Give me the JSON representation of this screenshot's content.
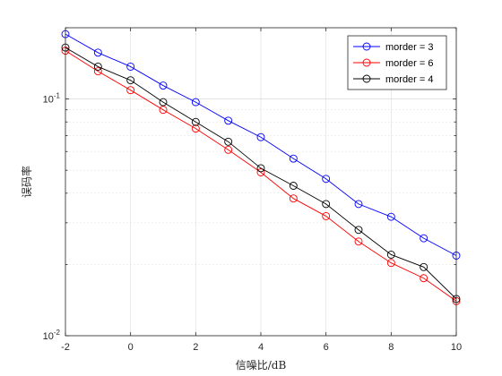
{
  "chart_data": {
    "type": "line",
    "title": "",
    "xlabel": "信噪比/dB",
    "ylabel": "误码率",
    "x": [
      -2,
      -1,
      0,
      1,
      2,
      3,
      4,
      5,
      6,
      7,
      8,
      9,
      10
    ],
    "xlim": [
      -2,
      10
    ],
    "ylim": [
      0.01,
      0.2
    ],
    "yscale": "log",
    "grid": true,
    "legend_position": "top-right",
    "x_ticks": [
      {
        "value": -2,
        "label": "-2"
      },
      {
        "value": 0,
        "label": "0"
      },
      {
        "value": 2,
        "label": "2"
      },
      {
        "value": 4,
        "label": "4"
      },
      {
        "value": 6,
        "label": "6"
      },
      {
        "value": 8,
        "label": "8"
      },
      {
        "value": 10,
        "label": "10"
      }
    ],
    "y_ticks": [
      {
        "value": 0.01,
        "base": "10",
        "exp": "-2"
      },
      {
        "value": 0.1,
        "base": "10",
        "exp": "-1"
      }
    ],
    "series": [
      {
        "name": "morder = 3",
        "color": "#0000ff",
        "values": [
          0.188,
          0.157,
          0.137,
          0.114,
          0.097,
          0.081,
          0.069,
          0.056,
          0.046,
          0.036,
          0.0318,
          0.0258,
          0.0218
        ]
      },
      {
        "name": "morder = 6",
        "color": "#ff0000",
        "values": [
          0.16,
          0.131,
          0.109,
          0.09,
          0.075,
          0.061,
          0.049,
          0.038,
          0.032,
          0.025,
          0.0203,
          0.0175,
          0.014
        ]
      },
      {
        "name": "morder = 4",
        "color": "#000000",
        "values": [
          0.165,
          0.137,
          0.12,
          0.097,
          0.08,
          0.066,
          0.051,
          0.043,
          0.036,
          0.028,
          0.022,
          0.0195,
          0.0143
        ]
      }
    ]
  }
}
